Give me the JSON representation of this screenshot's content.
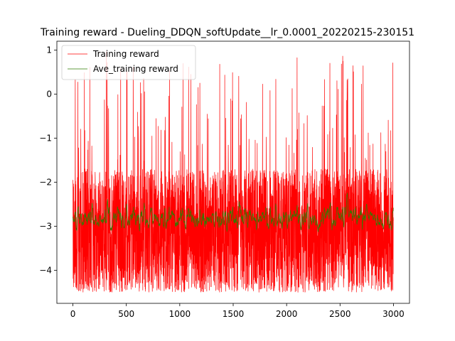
{
  "chart_data": {
    "type": "line",
    "title": "Training reward - Dueling_DDQN_softUpdate__lr_0.0001_20220215-230151",
    "xlabel": "",
    "ylabel": "",
    "xlim": [
      -150,
      3150
    ],
    "ylim": [
      -4.75,
      1.2
    ],
    "x_ticks": [
      0,
      500,
      1000,
      1500,
      2000,
      2500,
      3000
    ],
    "y_ticks": [
      -4,
      -3,
      -2,
      -1,
      0,
      1
    ],
    "legend_position": "upper-left",
    "grid": false,
    "series": [
      {
        "name": "Training reward",
        "color": "#ff0000",
        "n_points": 3000,
        "typical_range": [
          -4.5,
          -1.7
        ],
        "max_value": 1.0,
        "min_value": -4.5
      },
      {
        "name": "Ave_training reward",
        "color": "#2e7d00",
        "n_points": 3000,
        "typical_range": [
          -3.4,
          -1.7
        ],
        "max_value": -1.5,
        "min_value": -3.5
      }
    ]
  }
}
